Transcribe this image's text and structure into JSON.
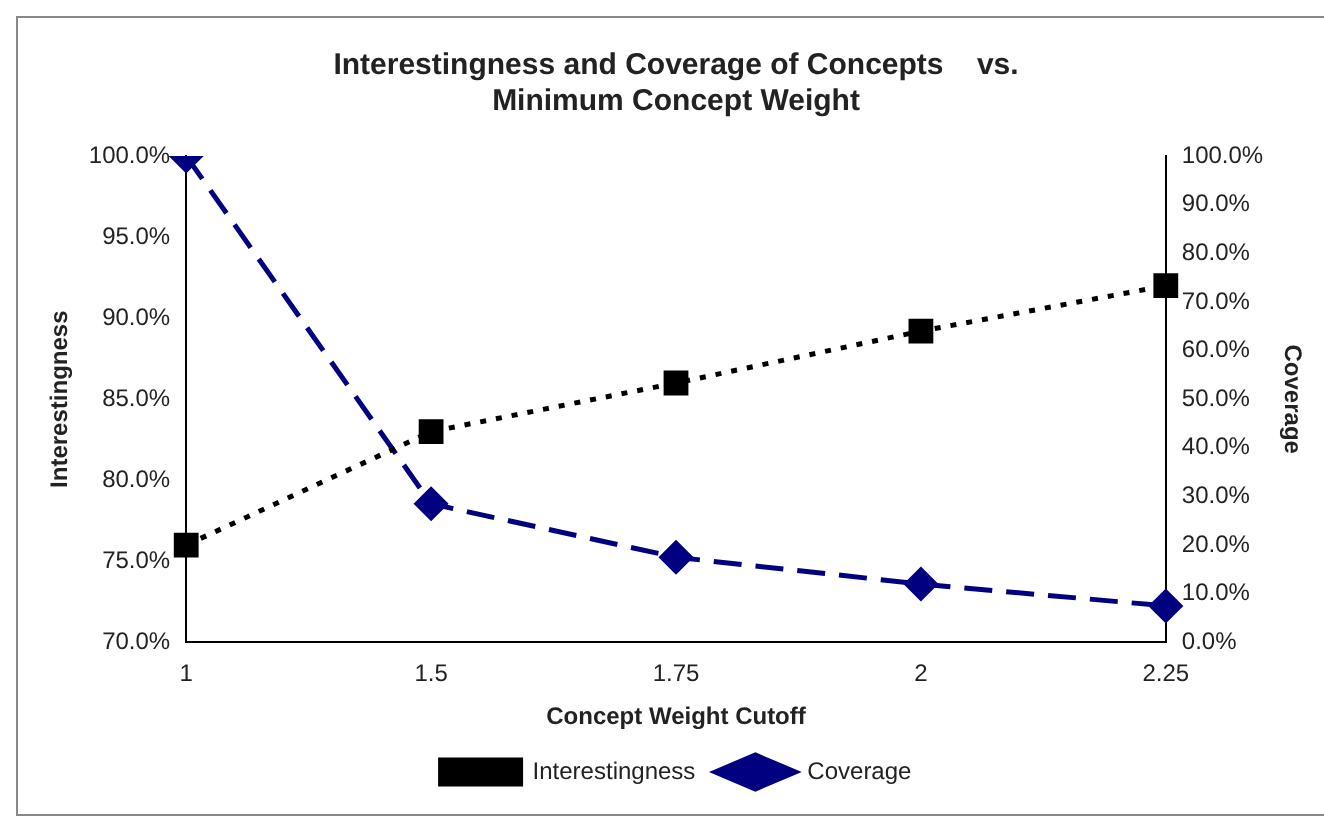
{
  "chart_data": {
    "type": "line",
    "title": "Interestingness and Coverage of Concepts    vs.\nMinimum Concept Weight",
    "xlabel": "Concept Weight Cutoff",
    "ylabel": "Interestingness",
    "y2label": "Coverage",
    "categories": [
      "1",
      "1.5",
      "1.75",
      "2",
      "2.25"
    ],
    "series": [
      {
        "name": "Interestingness",
        "color": "#000000",
        "marker": "square",
        "line_style": "dotted",
        "values": [
          76,
          83,
          86,
          89.2,
          92
        ]
      },
      {
        "name": "Coverage",
        "color": "#000080",
        "marker": "diamond",
        "line_style": "dashed",
        "axis": "y2",
        "values": [
          100,
          28.5,
          17.5,
          12,
          7.5
        ]
      }
    ],
    "ylim": [
      70,
      100
    ],
    "yticks": [
      {
        "value": 70,
        "label": "70.0%"
      },
      {
        "value": 75,
        "label": "75.0%"
      },
      {
        "value": 80,
        "label": "80.0%"
      },
      {
        "value": 85,
        "label": "85.0%"
      },
      {
        "value": 90,
        "label": "90.0%"
      },
      {
        "value": 95,
        "label": "95.0%"
      },
      {
        "value": 100,
        "label": "100.0%"
      }
    ],
    "y2lim": [
      0,
      100
    ],
    "y2ticks": [
      {
        "value": 0,
        "label": "0.0%"
      },
      {
        "value": 10,
        "label": "10.0%"
      },
      {
        "value": 20,
        "label": "20.0%"
      },
      {
        "value": 30,
        "label": "30.0%"
      },
      {
        "value": 40,
        "label": "40.0%"
      },
      {
        "value": 50,
        "label": "50.0%"
      },
      {
        "value": 60,
        "label": "60.0%"
      },
      {
        "value": 70,
        "label": "70.0%"
      },
      {
        "value": 80,
        "label": "80.0%"
      },
      {
        "value": 90,
        "label": "90.0%"
      },
      {
        "value": 100,
        "label": "100.0%"
      }
    ],
    "grid": false,
    "legend": "bottom"
  }
}
